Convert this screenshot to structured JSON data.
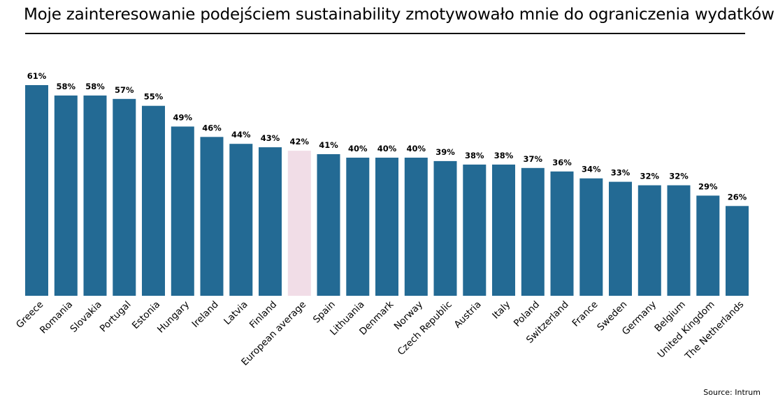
{
  "title": "Moje zainteresowanie podejściem sustainability zmotywowało mnie do ograniczenia wydatków",
  "source": "Source: Intrum",
  "colors": {
    "bar": "#236a94",
    "highlight": "#f1dde7"
  },
  "chart_data": {
    "type": "bar",
    "categories": [
      "Greece",
      "Romania",
      "Slovakia",
      "Portugal",
      "Estonia",
      "Hungary",
      "Ireland",
      "Latvia",
      "Finland",
      "European average",
      "Spain",
      "Lithuania",
      "Denmark",
      "Norway",
      "Czech Republic",
      "Austria",
      "Italy",
      "Poland",
      "Switzerland",
      "France",
      "Sweden",
      "Germany",
      "Belgium",
      "United Kingdom",
      "The Netherlands"
    ],
    "values": [
      61,
      58,
      58,
      57,
      55,
      49,
      46,
      44,
      43,
      42,
      41,
      40,
      40,
      40,
      39,
      38,
      38,
      37,
      36,
      34,
      33,
      32,
      32,
      29,
      26
    ],
    "value_labels": [
      "61%",
      "58%",
      "58%",
      "57%",
      "55%",
      "49%",
      "46%",
      "44%",
      "43%",
      "42%",
      "41%",
      "40%",
      "40%",
      "40%",
      "39%",
      "38%",
      "38%",
      "37%",
      "36%",
      "34%",
      "33%",
      "32%",
      "32%",
      "29%",
      "26%"
    ],
    "highlight_category": "European average",
    "ylim": [
      0,
      61
    ],
    "grid": false,
    "legend": "none"
  }
}
